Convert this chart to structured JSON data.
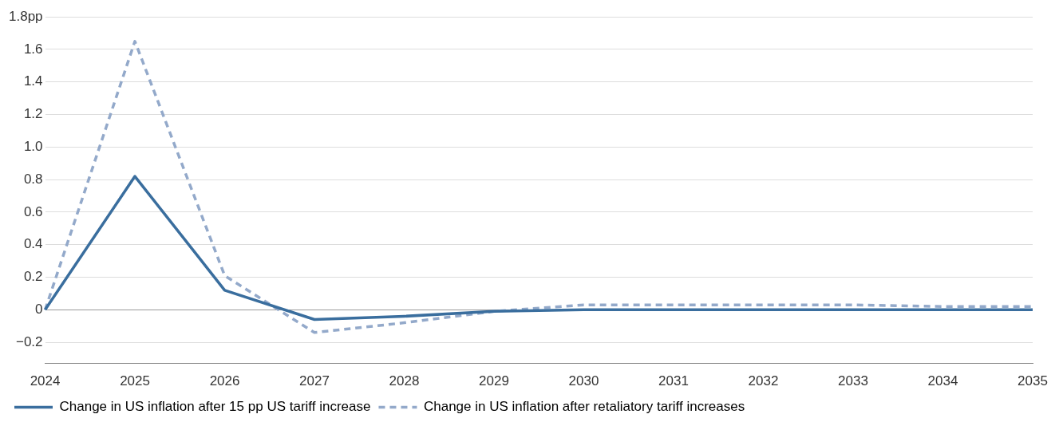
{
  "chart_data": {
    "type": "line",
    "categories": [
      "2024",
      "2025",
      "2026",
      "2027",
      "2028",
      "2029",
      "2030",
      "2031",
      "2032",
      "2033",
      "2034",
      "2035"
    ],
    "series": [
      {
        "name": "Change in US inflation after 15 pp US tariff increase",
        "color": "#3a6e9e",
        "line_style": "solid",
        "values": [
          0,
          0.82,
          0.12,
          -0.06,
          -0.04,
          -0.01,
          0,
          0,
          0,
          0,
          0,
          0
        ]
      },
      {
        "name": "Change in US inflation after retaliatory tariff increases",
        "color": "#93a9ca",
        "line_style": "dashed",
        "values": [
          0,
          1.65,
          0.21,
          -0.14,
          -0.08,
          -0.01,
          0.03,
          0.03,
          0.03,
          0.03,
          0.02,
          0.02
        ]
      }
    ],
    "ylim": [
      -0.33,
      1.8
    ],
    "yticks": [
      {
        "value": -0.2,
        "label": "−0.2"
      },
      0,
      0.2,
      0.4,
      0.6,
      0.8,
      {
        "value": 1.0,
        "label": "1.0"
      },
      1.2,
      1.4,
      1.6,
      {
        "value": 1.8,
        "label": "1.8pp"
      }
    ],
    "grid": "y",
    "legend": "bottom left",
    "marker": "none"
  }
}
